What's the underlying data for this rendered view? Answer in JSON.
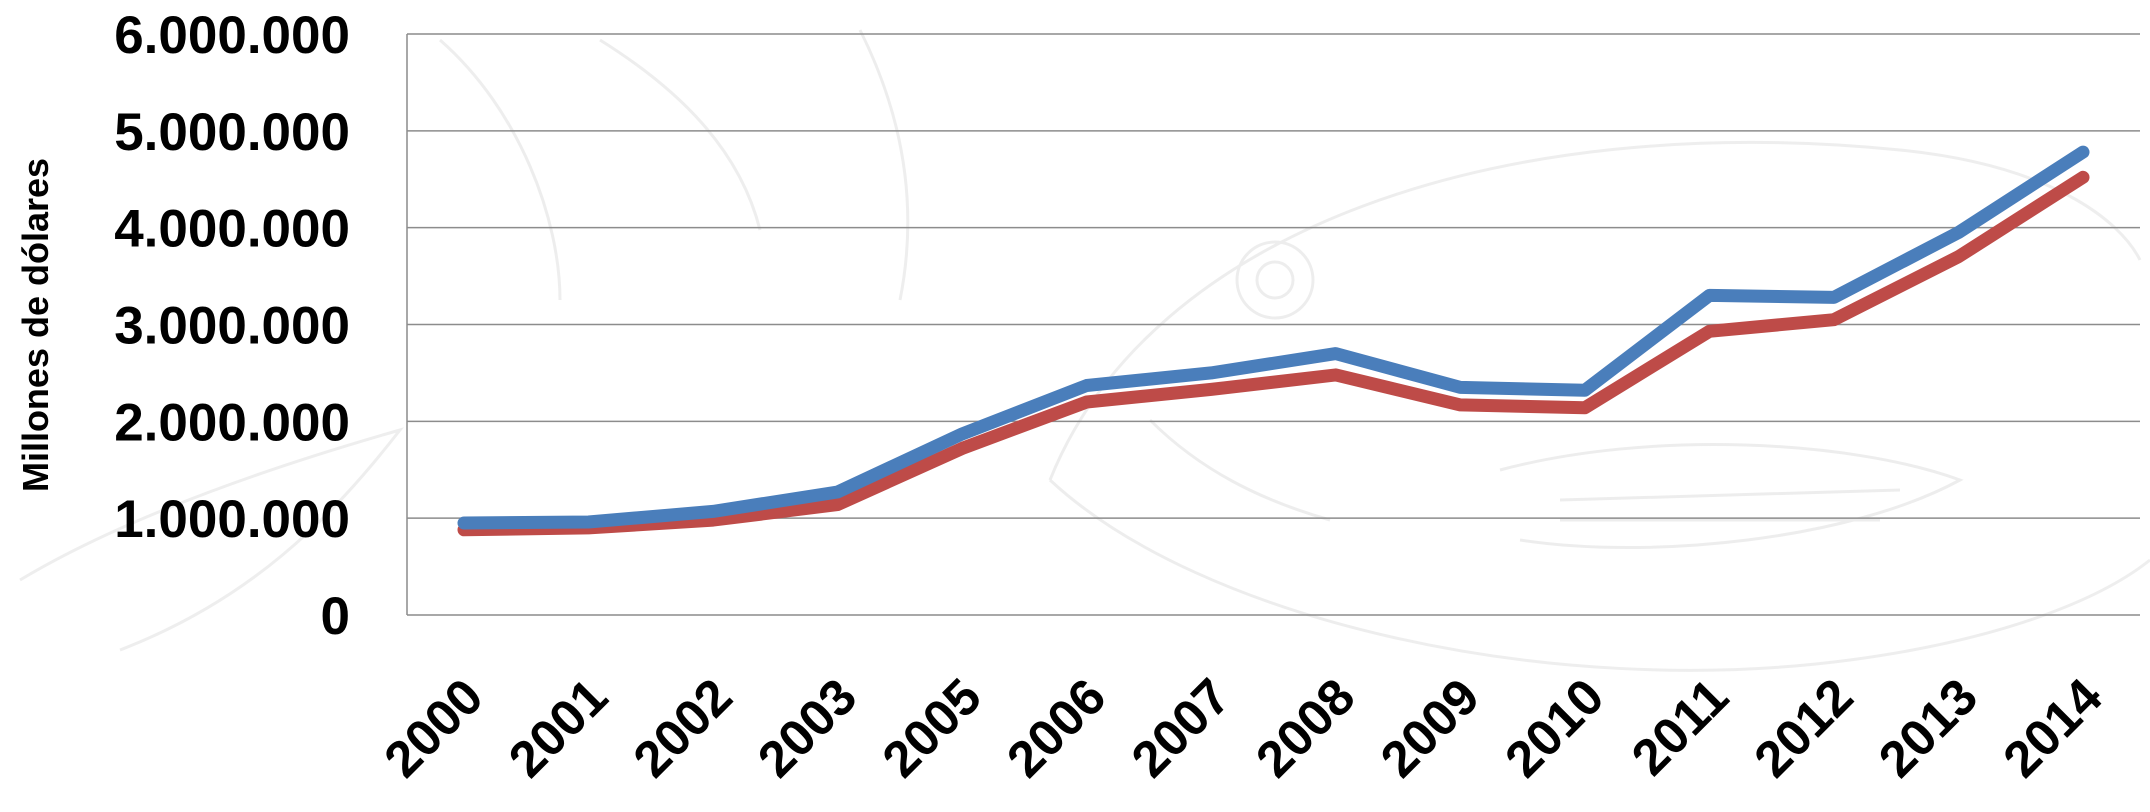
{
  "chart_data": {
    "type": "line",
    "title": "",
    "xlabel": "",
    "ylabel": "Millones  de dólares",
    "categories": [
      "2000",
      "2001",
      "2002",
      "2003",
      "2005",
      "2006",
      "2007",
      "2008",
      "2009",
      "2010",
      "2011",
      "2012",
      "2013",
      "2014"
    ],
    "ylim": [
      0,
      6000000
    ],
    "yticks": [
      0,
      1000000,
      2000000,
      3000000,
      4000000,
      5000000,
      6000000
    ],
    "ytick_labels": [
      "0",
      "1.000.000",
      "2.000.000",
      "3.000.000",
      "4.000.000",
      "5.000.000",
      "6.000.000"
    ],
    "grid": true,
    "legend": "none",
    "series": [
      {
        "color": "#4a7ebb",
        "values": [
          950000,
          960000,
          1070000,
          1270000,
          1870000,
          2370000,
          2500000,
          2700000,
          2350000,
          2320000,
          3300000,
          3280000,
          3950000,
          4780000
        ]
      },
      {
        "color": "#be4b48",
        "values": [
          880000,
          900000,
          980000,
          1140000,
          1720000,
          2200000,
          2330000,
          2480000,
          2170000,
          2140000,
          2930000,
          3050000,
          3700000,
          4520000
        ]
      }
    ]
  },
  "decoration": {
    "watermark_icon": "fish-watermark-icon"
  }
}
